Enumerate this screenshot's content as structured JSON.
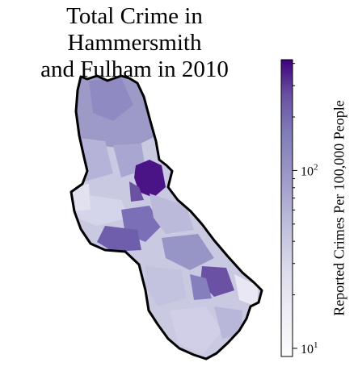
{
  "map": {
    "title_line1": "Total Crime in Hammersmith",
    "title_line2": "and Fulham in 2010",
    "region_outline_color": "#000000"
  },
  "colorbar": {
    "label": "Reported Crimes Per 100,000 People",
    "scale": "log",
    "range": [
      9,
      420
    ],
    "colormap": "Purples",
    "colors": [
      "#fcfbfd",
      "#dadaeb",
      "#bcbddc",
      "#9e9ac8",
      "#807dba",
      "#6a51a3",
      "#54278f",
      "#3f007d"
    ],
    "major_ticks": [
      {
        "value": 10,
        "base": "10",
        "exp": "1"
      },
      {
        "value": 100,
        "base": "10",
        "exp": "2"
      }
    ],
    "minor_ticks": [
      20,
      30,
      40,
      50,
      60,
      70,
      80,
      90,
      200,
      300,
      400
    ]
  }
}
